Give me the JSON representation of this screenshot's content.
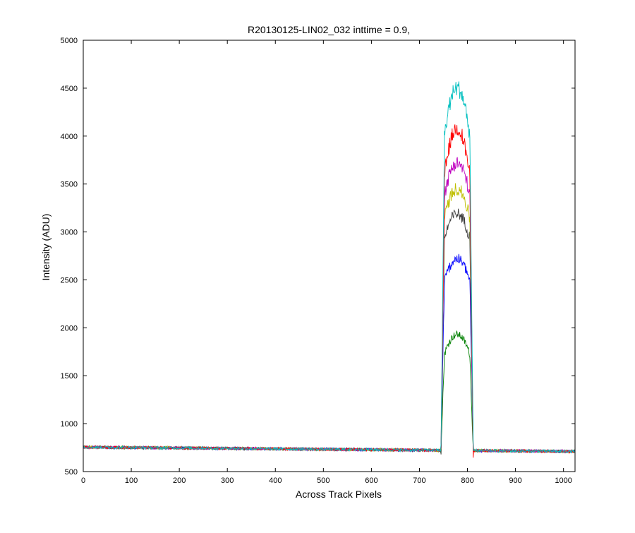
{
  "chart_data": {
    "type": "line",
    "title": "R20130125-LIN02_032 inttime = 0.9,",
    "xlabel": "Across Track Pixels",
    "ylabel": "Intensity (ADU)",
    "xlim": [
      0,
      1024
    ],
    "ylim": [
      500,
      5000
    ],
    "xticks": [
      "0",
      "100",
      "200",
      "300",
      "400",
      "500",
      "600",
      "700",
      "800",
      "900",
      "1000"
    ],
    "yticks": [
      "500",
      "1000",
      "1500",
      "2000",
      "2500",
      "3000",
      "3500",
      "4000",
      "4500",
      "5000"
    ],
    "grid": false,
    "legend": "none",
    "baseline": {
      "x": [
        0,
        1024
      ],
      "y": [
        755,
        710
      ]
    },
    "peak_region": {
      "rise_start": 745,
      "plateau_start": 752,
      "plateau_end": 805,
      "fall_end": 812
    },
    "series": [
      {
        "color": "#008000",
        "edge": 1720,
        "peak": 1930
      },
      {
        "color": "#0000ff",
        "edge": 2480,
        "peak": 2720
      },
      {
        "color": "#404040",
        "edge": 2930,
        "peak": 3190
      },
      {
        "color": "#bfbf00",
        "edge": 3130,
        "peak": 3450
      },
      {
        "color": "#bf00bf",
        "edge": 3380,
        "peak": 3720
      },
      {
        "color": "#ff0000",
        "edge": 3580,
        "peak": 4080
      },
      {
        "color": "#00bfbf",
        "edge": 4000,
        "peak": 4500
      }
    ]
  }
}
